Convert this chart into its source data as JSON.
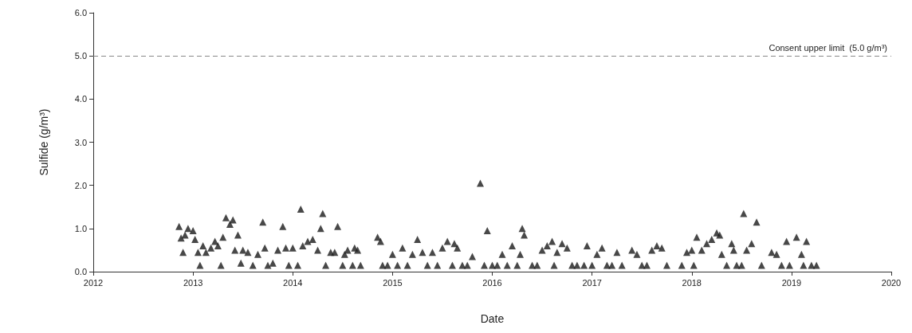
{
  "chart_data": {
    "type": "scatter",
    "xlabel": "Date",
    "ylabel": "Sulfide (g/m³)",
    "marker": "triangle",
    "grid": false,
    "xlim": [
      2012,
      2020
    ],
    "xticks": [
      2012,
      2013,
      2014,
      2015,
      2016,
      2017,
      2018,
      2019,
      2020
    ],
    "ylim": [
      0,
      6
    ],
    "yticks": [
      {
        "value": 0,
        "label": "0.0"
      },
      {
        "value": 1,
        "label": "1.0"
      },
      {
        "value": 2,
        "label": "2.0"
      },
      {
        "value": 3,
        "label": "3.0"
      },
      {
        "value": 4,
        "label": "4.0"
      },
      {
        "value": 5,
        "label": "5.0"
      },
      {
        "value": 6,
        "label": "6.0"
      }
    ],
    "ref_lines": [
      {
        "axis": "y",
        "value": 5,
        "label": "Consent upper limit  (5.0 g/m³)",
        "color": "#888888",
        "line_style": "dashed"
      }
    ],
    "series": [
      {
        "color": "#1a1a1a",
        "x": [
          2012.86,
          2012.88,
          2012.92,
          2012.95,
          2012.9,
          2013.0,
          2013.02,
          2013.05,
          2013.07,
          2013.1,
          2013.13,
          2013.18,
          2013.22,
          2013.25,
          2013.28,
          2013.3,
          2013.33,
          2013.37,
          2013.4,
          2013.42,
          2013.45,
          2013.48,
          2013.5,
          2013.55,
          2013.6,
          2013.65,
          2013.7,
          2013.72,
          2013.75,
          2013.8,
          2013.85,
          2013.9,
          2013.93,
          2013.96,
          2014.0,
          2014.05,
          2014.08,
          2014.1,
          2014.15,
          2014.2,
          2014.25,
          2014.28,
          2014.3,
          2014.33,
          2014.38,
          2014.42,
          2014.45,
          2014.5,
          2014.52,
          2014.55,
          2014.6,
          2014.62,
          2014.65,
          2014.68,
          2014.85,
          2014.88,
          2014.9,
          2014.95,
          2015.0,
          2015.05,
          2015.1,
          2015.15,
          2015.2,
          2015.25,
          2015.3,
          2015.35,
          2015.4,
          2015.45,
          2015.5,
          2015.55,
          2015.6,
          2015.62,
          2015.65,
          2015.7,
          2015.75,
          2015.8,
          2015.88,
          2015.92,
          2015.95,
          2016.0,
          2016.05,
          2016.1,
          2016.15,
          2016.2,
          2016.25,
          2016.28,
          2016.3,
          2016.32,
          2016.4,
          2016.45,
          2016.5,
          2016.55,
          2016.6,
          2016.62,
          2016.65,
          2016.7,
          2016.75,
          2016.8,
          2016.85,
          2016.92,
          2016.95,
          2017.0,
          2017.05,
          2017.1,
          2017.15,
          2017.2,
          2017.25,
          2017.3,
          2017.4,
          2017.45,
          2017.5,
          2017.55,
          2017.6,
          2017.65,
          2017.7,
          2017.75,
          2017.9,
          2017.95,
          2018.0,
          2018.02,
          2018.05,
          2018.1,
          2018.15,
          2018.2,
          2018.25,
          2018.28,
          2018.3,
          2018.35,
          2018.4,
          2018.42,
          2018.45,
          2018.5,
          2018.52,
          2018.55,
          2018.6,
          2018.65,
          2018.7,
          2018.8,
          2018.85,
          2018.9,
          2018.95,
          2018.98,
          2019.05,
          2019.1,
          2019.12,
          2019.15,
          2019.2,
          2019.25
        ],
        "values": [
          1.05,
          0.78,
          0.85,
          1.0,
          0.45,
          0.95,
          0.75,
          0.45,
          0.15,
          0.6,
          0.45,
          0.55,
          0.7,
          0.6,
          0.15,
          0.8,
          1.25,
          1.1,
          1.2,
          0.5,
          0.85,
          0.2,
          0.5,
          0.45,
          0.15,
          0.4,
          1.15,
          0.55,
          0.15,
          0.2,
          0.5,
          1.05,
          0.55,
          0.15,
          0.55,
          0.15,
          1.45,
          0.6,
          0.7,
          0.75,
          0.5,
          1.0,
          1.35,
          0.15,
          0.45,
          0.45,
          1.05,
          0.15,
          0.4,
          0.5,
          0.15,
          0.55,
          0.5,
          0.15,
          0.8,
          0.7,
          0.15,
          0.15,
          0.4,
          0.15,
          0.55,
          0.15,
          0.4,
          0.75,
          0.45,
          0.15,
          0.45,
          0.15,
          0.55,
          0.7,
          0.15,
          0.65,
          0.55,
          0.15,
          0.15,
          0.35,
          2.05,
          0.15,
          0.95,
          0.15,
          0.15,
          0.4,
          0.15,
          0.6,
          0.15,
          0.4,
          1.0,
          0.85,
          0.15,
          0.15,
          0.5,
          0.6,
          0.7,
          0.15,
          0.45,
          0.65,
          0.55,
          0.15,
          0.15,
          0.15,
          0.6,
          0.15,
          0.4,
          0.55,
          0.15,
          0.15,
          0.45,
          0.15,
          0.5,
          0.4,
          0.15,
          0.15,
          0.5,
          0.6,
          0.55,
          0.15,
          0.15,
          0.45,
          0.5,
          0.15,
          0.8,
          0.5,
          0.65,
          0.75,
          0.9,
          0.85,
          0.4,
          0.15,
          0.65,
          0.5,
          0.15,
          0.15,
          1.35,
          0.5,
          0.65,
          1.15,
          0.15,
          0.45,
          0.4,
          0.15,
          0.7,
          0.15,
          0.8,
          0.4,
          0.15,
          0.7,
          0.15,
          0.15
        ]
      }
    ]
  }
}
